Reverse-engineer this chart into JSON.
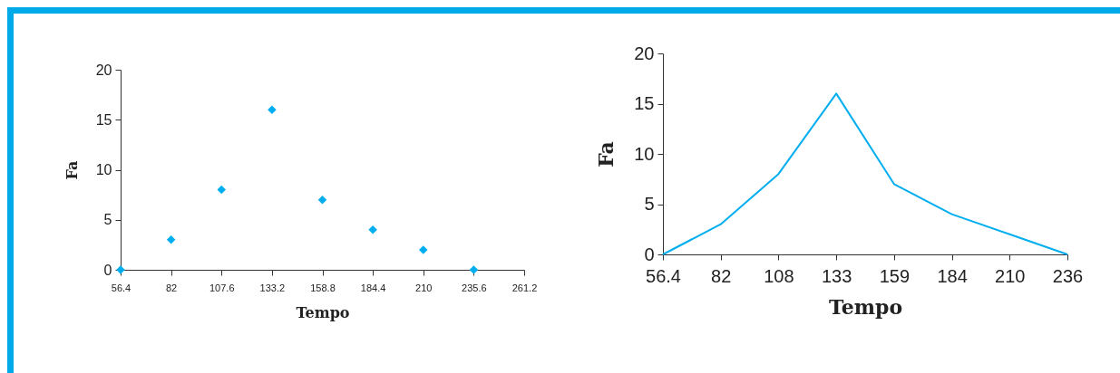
{
  "chart_data": [
    {
      "type": "scatter",
      "xlabel": "Tempo",
      "ylabel": "Fa",
      "marker": "diamond",
      "grid": false,
      "x": [
        56.4,
        82,
        107.6,
        133.2,
        158.8,
        184.4,
        210,
        235.6
      ],
      "series": [
        {
          "color": "#00aeef",
          "values": [
            0,
            3,
            8,
            16,
            7,
            4,
            2,
            0
          ]
        }
      ],
      "xlim": [
        56.4,
        261.2
      ],
      "xticks": [
        56.4,
        82,
        107.6,
        133.2,
        158.8,
        184.4,
        210,
        235.6,
        261.2
      ],
      "ylim": [
        0,
        20
      ],
      "yticks": [
        0,
        5,
        10,
        15,
        20
      ]
    },
    {
      "type": "line",
      "xlabel": "Tempo",
      "ylabel": "Fa",
      "marker": "none",
      "line_style": "solid",
      "grid": false,
      "x": [
        56.4,
        82,
        107.6,
        133.2,
        158.8,
        184.4,
        210,
        235.6
      ],
      "series": [
        {
          "color": "#00aeef",
          "values": [
            0,
            3,
            8,
            16,
            7,
            4,
            2,
            0
          ]
        }
      ],
      "xlim": [
        56.4,
        235.6
      ],
      "xticks": [
        56.4,
        82,
        {
          "value": 107.6,
          "label": "108"
        },
        {
          "value": 133.2,
          "label": "133"
        },
        {
          "value": 158.8,
          "label": "159"
        },
        {
          "value": 184.4,
          "label": "184"
        },
        210,
        {
          "value": 235.6,
          "label": "236"
        }
      ],
      "ylim": [
        0,
        20
      ],
      "yticks": [
        0,
        5,
        10,
        15,
        20
      ]
    }
  ]
}
